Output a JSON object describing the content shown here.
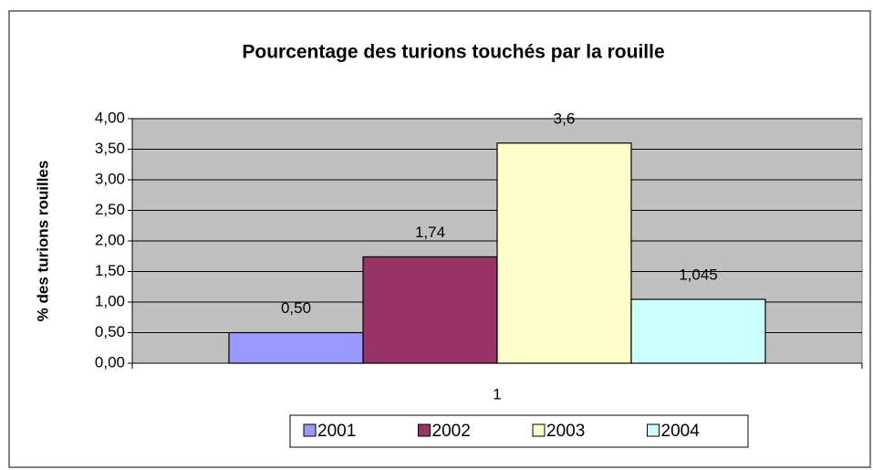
{
  "chart_data": {
    "type": "bar",
    "title": "Pourcentage des turions touchés par la rouille",
    "y_label": "% des turions rouilles",
    "categories": [
      "1"
    ],
    "series": [
      {
        "name": "2001",
        "color": "#9999ff",
        "values": [
          0.5
        ],
        "value_labels": [
          "0,50"
        ]
      },
      {
        "name": "2002",
        "color": "#993366",
        "values": [
          1.74
        ],
        "value_labels": [
          "1,74"
        ]
      },
      {
        "name": "2003",
        "color": "#ffffcc",
        "values": [
          3.6
        ],
        "value_labels": [
          "3,6"
        ]
      },
      {
        "name": "2004",
        "color": "#ccffff",
        "values": [
          1.045
        ],
        "value_labels": [
          "1,045"
        ]
      }
    ],
    "ylim": [
      0,
      4
    ],
    "yticks": [
      {
        "value": 0,
        "label": "0,00"
      },
      {
        "value": 0.5,
        "label": "0,50"
      },
      {
        "value": 1,
        "label": "1,00"
      },
      {
        "value": 1.5,
        "label": "1,50"
      },
      {
        "value": 2,
        "label": "2,00"
      },
      {
        "value": 2.5,
        "label": "2,50"
      },
      {
        "value": 3,
        "label": "3,00"
      },
      {
        "value": 3.5,
        "label": "3,50"
      },
      {
        "value": 4,
        "label": "4,00"
      }
    ],
    "grid": true,
    "legend": "bottom",
    "plot_background": "#c0c0c0"
  }
}
